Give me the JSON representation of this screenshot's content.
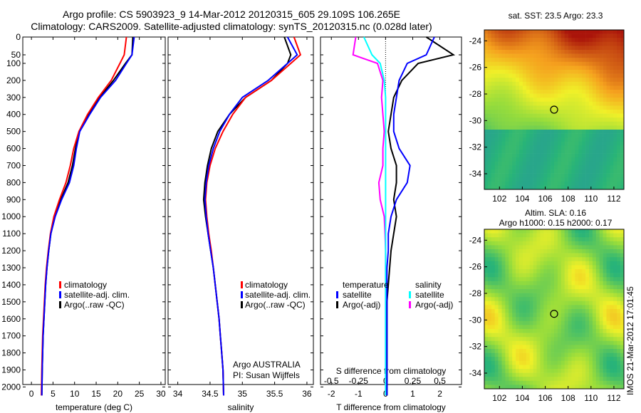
{
  "header": {
    "title_line1": "Argo profile: CS 5903923_9 14-Mar-2012 20120315_605 29.109S 106.265E",
    "title_line2": "Climatology: CARS2009. Satellite-adjusted climatology: synTS_20120315.nc (0.028d later)"
  },
  "depth_ticks": [
    0,
    50,
    100,
    200,
    300,
    400,
    500,
    600,
    700,
    800,
    900,
    1000,
    1100,
    1200,
    1300,
    1400,
    1500,
    1600,
    1700,
    1800,
    1900,
    2000
  ],
  "colors": {
    "climatology": "#ff0000",
    "satellite": "#0000ff",
    "argo": "#000000",
    "sal_satellite": "#00ffff",
    "sal_argo": "#ff00ff"
  },
  "temp_panel": {
    "xlabel": "temperature (deg C)",
    "xticks": [
      "0",
      "5",
      "10",
      "15",
      "20",
      "25",
      "30"
    ],
    "xlim": [
      -2,
      31
    ],
    "legend": [
      "climatology",
      "satellite-adj. clim.",
      "Argo(..raw -QC)"
    ]
  },
  "sal_panel": {
    "xlabel": "salinity",
    "xticks": [
      "34",
      "34.5",
      "35",
      "35.5",
      "36"
    ],
    "xlim": [
      33.85,
      36.1
    ],
    "legend": [
      "climatology",
      "satellite-adj. clim.",
      "Argo(..raw -QC)"
    ],
    "note1": "Argo AUSTRALIA",
    "note2": "PI: Susan Wijffels"
  },
  "diff_panel": {
    "xlabel": "T difference from climatology",
    "xlabel_top": "S difference from climatology",
    "xticks_t": [
      "-2",
      "-1",
      "0",
      "1",
      "2"
    ],
    "xticks_s": [
      "-0.5",
      "-0.25",
      "0",
      "0.25",
      "0.5"
    ],
    "xlim": [
      -2.4,
      2.8
    ],
    "legend_t_title": "temperature",
    "legend_t": [
      "satellite",
      "Argo(-adj)"
    ],
    "legend_s_title": "salinity",
    "legend_s": [
      "satellite",
      "Argo(-adj)"
    ]
  },
  "sst_map": {
    "title": "sat. SST: 23.5 Argo: 23.3",
    "yticks": [
      "-24",
      "-26",
      "-28",
      "-30",
      "-32",
      "-34"
    ],
    "xticks": [
      "102",
      "104",
      "106",
      "108",
      "110",
      "112"
    ]
  },
  "sla_map": {
    "title1": "Altim. SLA: 0.16",
    "title2": "Argo h1000: 0.15 h2000: 0.17",
    "yticks": [
      "-24",
      "-26",
      "-28",
      "-30",
      "-32",
      "-34"
    ],
    "xticks": [
      "102",
      "104",
      "106",
      "108",
      "110",
      "112"
    ]
  },
  "stamp": "IMOS 21-Mar-2012 17:01:45",
  "chart_data": [
    {
      "type": "line",
      "xlabel": "temperature (deg C)",
      "ylabel": "",
      "xlim": [
        -2,
        31
      ],
      "ylim": [
        2050,
        0
      ],
      "series": [
        {
          "name": "climatology",
          "x": [
            22.0,
            21.5,
            20.5,
            18.5,
            15.5,
            13.0,
            11.0,
            9.8,
            9.0,
            8.0,
            6.5,
            5.2,
            4.4,
            3.9,
            3.5,
            3.2,
            3.0,
            2.8,
            2.6,
            2.5,
            2.4,
            2.3
          ],
          "depth": [
            0,
            50,
            100,
            200,
            300,
            400,
            500,
            600,
            700,
            800,
            900,
            1000,
            1100,
            1200,
            1300,
            1400,
            1500,
            1600,
            1700,
            1800,
            1900,
            2050
          ]
        },
        {
          "name": "satellite-adj. clim.",
          "x": [
            23.8,
            23.3,
            22.0,
            19.5,
            16.0,
            13.5,
            11.2,
            10.4,
            9.8,
            8.8,
            7.0,
            5.5,
            4.5,
            4.0,
            3.6,
            3.3,
            3.1,
            2.9,
            2.7,
            2.6,
            2.5,
            2.4
          ],
          "depth": [
            0,
            50,
            100,
            200,
            300,
            400,
            500,
            600,
            700,
            800,
            900,
            1000,
            1100,
            1200,
            1300,
            1400,
            1500,
            1600,
            1700,
            1800,
            1900,
            2050
          ]
        },
        {
          "name": "Argo(..raw -QC)",
          "x": [
            23.5,
            23.3,
            21.8,
            19.0,
            15.8,
            13.3,
            11.1,
            10.2,
            9.5,
            8.5,
            6.8,
            5.4,
            4.5,
            4.0,
            3.6,
            3.3,
            3.1,
            2.9,
            2.7,
            2.6,
            2.5,
            2.4
          ],
          "depth": [
            0,
            50,
            100,
            200,
            300,
            400,
            500,
            600,
            700,
            800,
            900,
            1000,
            1100,
            1200,
            1300,
            1400,
            1500,
            1600,
            1700,
            1800,
            1900,
            2050
          ]
        }
      ]
    },
    {
      "type": "line",
      "xlabel": "salinity",
      "ylabel": "",
      "xlim": [
        33.85,
        36.1
      ],
      "ylim": [
        2050,
        0
      ],
      "series": [
        {
          "name": "climatology",
          "x": [
            35.8,
            35.9,
            35.75,
            35.45,
            35.05,
            34.85,
            34.7,
            34.58,
            34.5,
            34.45,
            34.43,
            34.45,
            34.48,
            34.52,
            34.55,
            34.58,
            34.61,
            34.64,
            34.66,
            34.68,
            34.7,
            34.71
          ],
          "depth": [
            0,
            50,
            100,
            200,
            300,
            400,
            500,
            600,
            700,
            800,
            900,
            1000,
            1100,
            1200,
            1300,
            1400,
            1500,
            1600,
            1700,
            1800,
            1900,
            2050
          ]
        },
        {
          "name": "satellite-adj. clim.",
          "x": [
            35.7,
            35.85,
            35.7,
            35.4,
            35.0,
            34.8,
            34.65,
            34.55,
            34.48,
            34.44,
            34.42,
            34.44,
            34.47,
            34.51,
            34.55,
            34.58,
            34.61,
            34.64,
            34.66,
            34.68,
            34.7,
            34.71
          ],
          "depth": [
            0,
            50,
            100,
            200,
            300,
            400,
            500,
            600,
            700,
            800,
            900,
            1000,
            1100,
            1200,
            1300,
            1400,
            1500,
            1600,
            1700,
            1800,
            1900,
            2050
          ]
        },
        {
          "name": "Argo(..raw -QC)",
          "x": [
            35.65,
            35.75,
            35.7,
            35.45,
            35.05,
            34.8,
            34.62,
            34.52,
            34.46,
            34.42,
            34.4,
            34.43,
            34.47,
            34.51,
            34.55,
            34.58,
            34.61,
            34.64,
            34.66,
            34.68,
            34.7,
            34.71
          ],
          "depth": [
            0,
            50,
            100,
            200,
            300,
            400,
            500,
            600,
            700,
            800,
            900,
            1000,
            1100,
            1200,
            1300,
            1400,
            1500,
            1600,
            1700,
            1800,
            1900,
            2050
          ]
        }
      ]
    },
    {
      "type": "line",
      "xlabel": "T difference from climatology",
      "ylabel": "",
      "xlim": [
        -2.4,
        2.8
      ],
      "ylim": [
        2050,
        0
      ],
      "series": [
        {
          "name": "satellite",
          "x": [
            1.8,
            1.5,
            0.8,
            0.5,
            0.4,
            0.3,
            0.3,
            0.5,
            0.9,
            0.8,
            0.4,
            0.2,
            0.1,
            0.1,
            0.05,
            0.05,
            0.05,
            0.05,
            0.05,
            0.05,
            0.05,
            0.05
          ],
          "depth": [
            0,
            50,
            100,
            200,
            300,
            400,
            500,
            600,
            700,
            800,
            900,
            1000,
            1100,
            1200,
            1300,
            1400,
            1500,
            1600,
            1700,
            1800,
            1900,
            2050
          ]
        },
        {
          "name": "Argo(-adj)",
          "x": [
            1.5,
            2.5,
            1.2,
            0.6,
            0.3,
            0.2,
            0.1,
            0.2,
            0.4,
            0.4,
            0.3,
            0.4,
            0.3,
            0.2,
            0.15,
            0.1,
            0.05,
            0.05,
            0.05,
            0.05,
            0.05,
            0.05
          ],
          "depth": [
            0,
            50,
            100,
            200,
            300,
            400,
            500,
            600,
            700,
            800,
            900,
            1000,
            1100,
            1200,
            1300,
            1400,
            1500,
            1600,
            1700,
            1800,
            1900,
            2050
          ]
        },
        {
          "name": "satellite (salinity)",
          "x": [
            -0.8,
            -0.5,
            -0.2,
            -0.05,
            0.0,
            0.0,
            0.0,
            0.0,
            0.0,
            0.0,
            0.0,
            0.0,
            0.0,
            0.0,
            0.0,
            0.0,
            0.0,
            0.0,
            0.0,
            0.0,
            0.0,
            0.0
          ],
          "depth": [
            0,
            50,
            100,
            200,
            300,
            400,
            500,
            600,
            700,
            800,
            900,
            1000,
            1100,
            1200,
            1300,
            1400,
            1500,
            1600,
            1700,
            1800,
            1900,
            2050
          ]
        },
        {
          "name": "Argo(-adj) (salinity)",
          "x": [
            -1.1,
            -1.2,
            -0.3,
            -0.1,
            -0.15,
            -0.1,
            -0.05,
            -0.1,
            -0.1,
            -0.25,
            -0.2,
            -0.05,
            -0.02,
            0.0,
            0.0,
            0.0,
            0.0,
            0.0,
            0.0,
            0.0,
            0.0,
            0.0
          ],
          "depth": [
            0,
            50,
            100,
            200,
            300,
            400,
            500,
            600,
            700,
            800,
            900,
            1000,
            1100,
            1200,
            1300,
            1400,
            1500,
            1600,
            1700,
            1800,
            1900,
            2050
          ]
        }
      ]
    }
  ]
}
